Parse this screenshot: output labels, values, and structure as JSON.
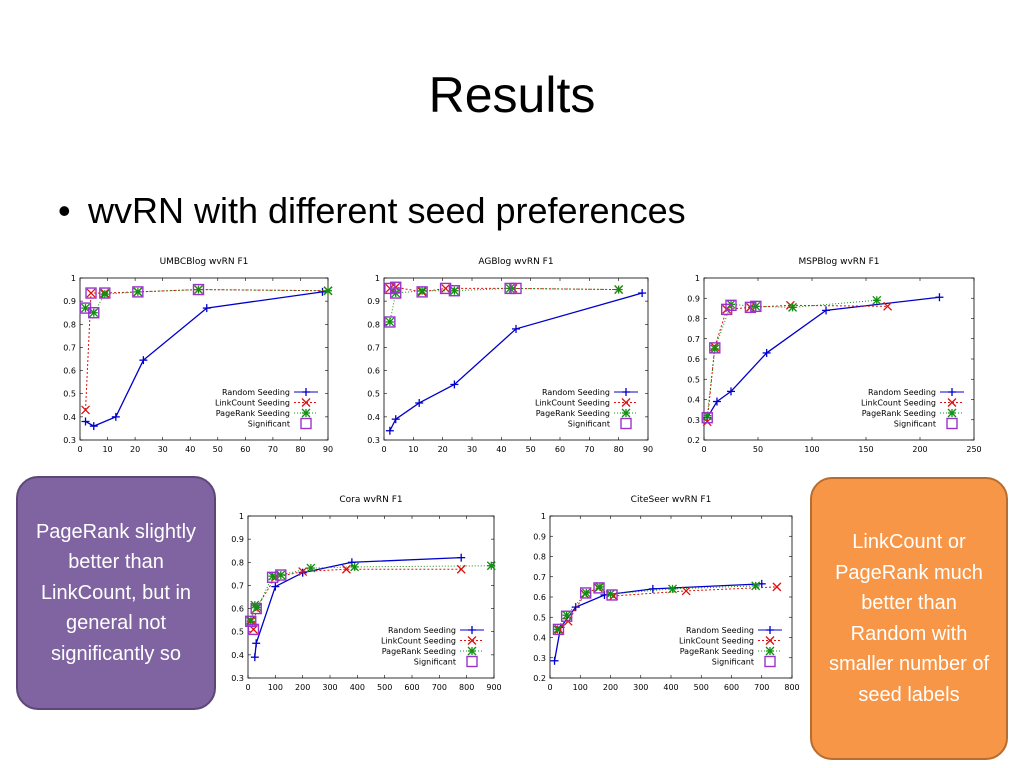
{
  "slide": {
    "title": "Results",
    "bullet": "wvRN with different seed preferences",
    "bullet_icon": "•"
  },
  "callouts": {
    "left": {
      "text": "PageRank slightly better than LinkCount, but in general not significantly so",
      "color": "#8064a2"
    },
    "right": {
      "text": "LinkCount or PageRank much better than Random with smaller number of seed labels",
      "color": "#f79646"
    }
  },
  "legend": [
    "Random Seeding",
    "LinkCount Seeding",
    "PageRank Seeding",
    "Significant"
  ],
  "colors": {
    "random": "#0000cc",
    "linkcount": "#e01010",
    "pagerank": "#109010",
    "significant": "#9933cc"
  },
  "chart_data": [
    {
      "type": "line",
      "title": "UMBCBlog wvRN F1",
      "xlim": [
        0,
        90
      ],
      "ylim": [
        0.3,
        1
      ],
      "xticks": [
        0,
        10,
        20,
        30,
        40,
        50,
        60,
        70,
        80,
        90
      ],
      "yticks": [
        0.3,
        0.4,
        0.5,
        0.6,
        0.7,
        0.8,
        0.9,
        1
      ],
      "grid": false,
      "legend_position": "bottom-right",
      "series": [
        {
          "name": "Random Seeding",
          "x": [
            2,
            5,
            13,
            23,
            46,
            88
          ],
          "y": [
            0.38,
            0.36,
            0.4,
            0.645,
            0.87,
            0.94
          ]
        },
        {
          "name": "LinkCount Seeding",
          "x": [
            2,
            4,
            9,
            21,
            43,
            90
          ],
          "y": [
            0.43,
            0.935,
            0.935,
            0.94,
            0.95,
            0.945
          ]
        },
        {
          "name": "PageRank Seeding",
          "x": [
            2,
            5,
            9,
            21,
            43,
            90
          ],
          "y": [
            0.87,
            0.85,
            0.93,
            0.94,
            0.95,
            0.945
          ]
        }
      ],
      "significant": [
        {
          "x": 2,
          "y": 0.87
        },
        {
          "x": 4,
          "y": 0.935
        },
        {
          "x": 5,
          "y": 0.85
        },
        {
          "x": 9,
          "y": 0.935
        },
        {
          "x": 21,
          "y": 0.94
        },
        {
          "x": 43,
          "y": 0.95
        }
      ]
    },
    {
      "type": "line",
      "title": "AGBlog wvRN F1",
      "xlim": [
        0,
        90
      ],
      "ylim": [
        0.3,
        1
      ],
      "xticks": [
        0,
        10,
        20,
        30,
        40,
        50,
        60,
        70,
        80,
        90
      ],
      "yticks": [
        0.3,
        0.4,
        0.5,
        0.6,
        0.7,
        0.8,
        0.9,
        1
      ],
      "grid": false,
      "legend_position": "bottom-right",
      "series": [
        {
          "name": "Random Seeding",
          "x": [
            2,
            4,
            12,
            24,
            45,
            88
          ],
          "y": [
            0.34,
            0.39,
            0.46,
            0.54,
            0.78,
            0.935
          ]
        },
        {
          "name": "LinkCount Seeding",
          "x": [
            2,
            4,
            13,
            21,
            44,
            80
          ],
          "y": [
            0.955,
            0.96,
            0.94,
            0.955,
            0.955,
            0.95
          ]
        },
        {
          "name": "PageRank Seeding",
          "x": [
            2,
            4,
            13,
            24,
            43,
            80
          ],
          "y": [
            0.81,
            0.935,
            0.945,
            0.945,
            0.955,
            0.95
          ]
        }
      ],
      "significant": [
        {
          "x": 2,
          "y": 0.81
        },
        {
          "x": 2,
          "y": 0.955
        },
        {
          "x": 4,
          "y": 0.96
        },
        {
          "x": 4,
          "y": 0.935
        },
        {
          "x": 13,
          "y": 0.94
        },
        {
          "x": 21,
          "y": 0.955
        },
        {
          "x": 24,
          "y": 0.945
        },
        {
          "x": 43,
          "y": 0.955
        },
        {
          "x": 45,
          "y": 0.955
        }
      ]
    },
    {
      "type": "line",
      "title": "MSPBlog wvRN F1",
      "xlim": [
        0,
        250
      ],
      "ylim": [
        0.2,
        1
      ],
      "xticks": [
        0,
        50,
        100,
        150,
        200,
        250
      ],
      "yticks": [
        0.2,
        0.3,
        0.4,
        0.5,
        0.6,
        0.7,
        0.8,
        0.9,
        1
      ],
      "grid": false,
      "legend_position": "bottom-right",
      "series": [
        {
          "name": "Random Seeding",
          "x": [
            3,
            12,
            25,
            58,
            113,
            218
          ],
          "y": [
            0.31,
            0.39,
            0.44,
            0.63,
            0.84,
            0.905
          ]
        },
        {
          "name": "LinkCount Seeding",
          "x": [
            3,
            10,
            21,
            43,
            80,
            170
          ],
          "y": [
            0.29,
            0.66,
            0.845,
            0.855,
            0.865,
            0.86
          ]
        },
        {
          "name": "PageRank Seeding",
          "x": [
            3,
            10,
            25,
            48,
            82,
            160
          ],
          "y": [
            0.32,
            0.65,
            0.87,
            0.86,
            0.855,
            0.89
          ]
        }
      ],
      "significant": [
        {
          "x": 3,
          "y": 0.31
        },
        {
          "x": 10,
          "y": 0.655
        },
        {
          "x": 21,
          "y": 0.845
        },
        {
          "x": 25,
          "y": 0.865
        },
        {
          "x": 43,
          "y": 0.855
        },
        {
          "x": 48,
          "y": 0.86
        }
      ]
    },
    {
      "type": "line",
      "title": "Cora wvRN F1",
      "xlim": [
        0,
        900
      ],
      "ylim": [
        0.3,
        1
      ],
      "xticks": [
        0,
        100,
        200,
        300,
        400,
        500,
        600,
        700,
        800,
        900
      ],
      "yticks": [
        0.3,
        0.4,
        0.5,
        0.6,
        0.7,
        0.8,
        0.9,
        1
      ],
      "grid": false,
      "legend_position": "bottom-right",
      "series": [
        {
          "name": "Random Seeding",
          "x": [
            25,
            30,
            100,
            200,
            380,
            780
          ],
          "y": [
            0.39,
            0.45,
            0.695,
            0.755,
            0.8,
            0.82
          ]
        },
        {
          "name": "LinkCount Seeding",
          "x": [
            10,
            20,
            30,
            100,
            200,
            360,
            780
          ],
          "y": [
            0.55,
            0.51,
            0.6,
            0.735,
            0.76,
            0.77,
            0.77
          ]
        },
        {
          "name": "PageRank Seeding",
          "x": [
            10,
            25,
            35,
            90,
            120,
            230,
            390,
            890
          ],
          "y": [
            0.545,
            0.615,
            0.605,
            0.74,
            0.745,
            0.775,
            0.78,
            0.785
          ]
        }
      ],
      "significant": [
        {
          "x": 10,
          "y": 0.545
        },
        {
          "x": 20,
          "y": 0.51
        },
        {
          "x": 30,
          "y": 0.6
        },
        {
          "x": 90,
          "y": 0.735
        },
        {
          "x": 120,
          "y": 0.745
        }
      ]
    },
    {
      "type": "line",
      "title": "CiteSeer wvRN F1",
      "xlim": [
        0,
        800
      ],
      "ylim": [
        0.2,
        1
      ],
      "xticks": [
        0,
        100,
        200,
        300,
        400,
        500,
        600,
        700,
        800
      ],
      "yticks": [
        0.2,
        0.3,
        0.4,
        0.5,
        0.6,
        0.7,
        0.8,
        0.9,
        1
      ],
      "grid": false,
      "legend_position": "bottom-right",
      "series": [
        {
          "name": "Random Seeding",
          "x": [
            15,
            35,
            85,
            180,
            340,
            700
          ],
          "y": [
            0.285,
            0.45,
            0.55,
            0.61,
            0.64,
            0.665
          ]
        },
        {
          "name": "LinkCount Seeding",
          "x": [
            30,
            60,
            115,
            160,
            210,
            450,
            750
          ],
          "y": [
            0.44,
            0.48,
            0.615,
            0.645,
            0.605,
            0.63,
            0.65
          ]
        },
        {
          "name": "PageRank Seeding",
          "x": [
            25,
            55,
            120,
            165,
            200,
            405,
            680
          ],
          "y": [
            0.44,
            0.51,
            0.62,
            0.65,
            0.615,
            0.64,
            0.655
          ]
        }
      ],
      "significant": [
        {
          "x": 28,
          "y": 0.44
        },
        {
          "x": 55,
          "y": 0.505
        },
        {
          "x": 118,
          "y": 0.62
        },
        {
          "x": 162,
          "y": 0.645
        },
        {
          "x": 205,
          "y": 0.61
        }
      ]
    }
  ]
}
